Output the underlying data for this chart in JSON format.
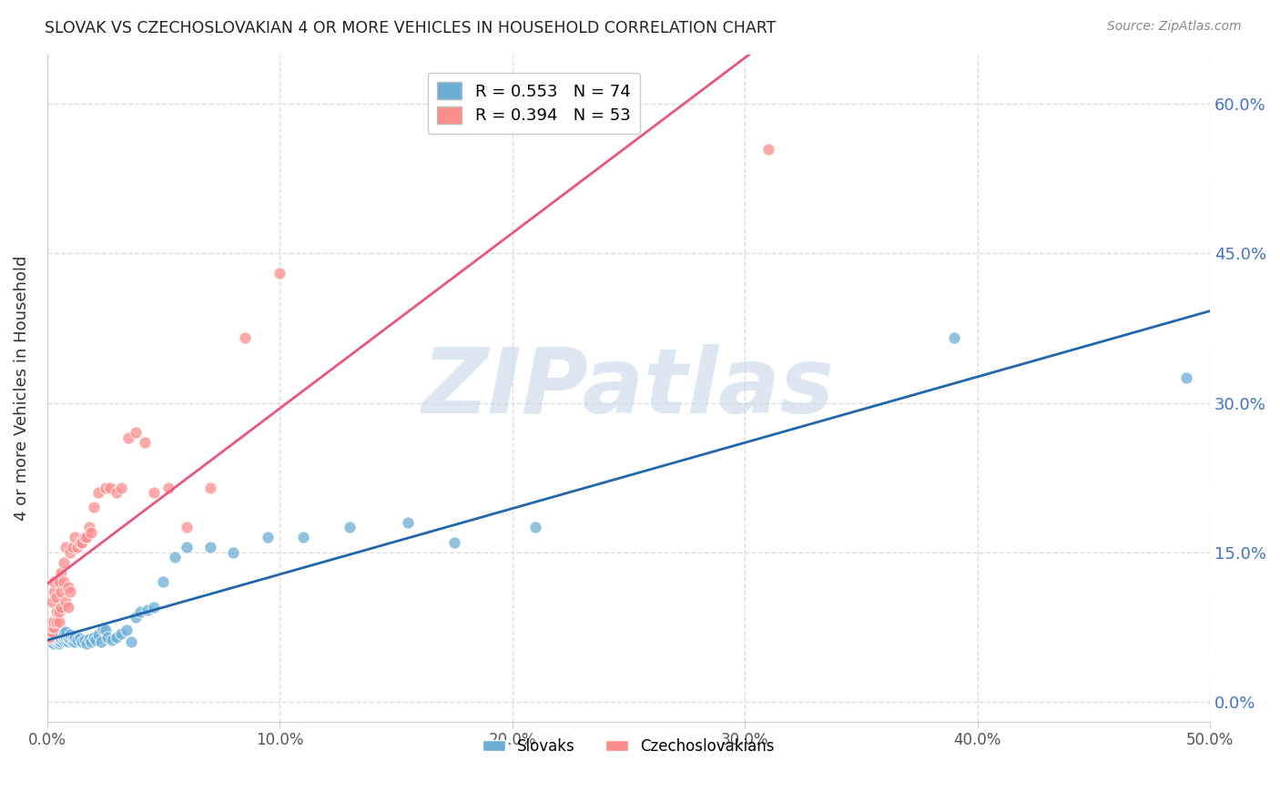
{
  "title": "SLOVAK VS CZECHOSLOVAKIAN 4 OR MORE VEHICLES IN HOUSEHOLD CORRELATION CHART",
  "source": "Source: ZipAtlas.com",
  "ylabel": "4 or more Vehicles in Household",
  "xlabel_ticks": [
    "0.0%",
    "10.0%",
    "20.0%",
    "30.0%",
    "40.0%",
    "50.0%"
  ],
  "xlabel_vals": [
    0.0,
    0.1,
    0.2,
    0.3,
    0.4,
    0.5
  ],
  "ylabel_ticks": [
    "0.0%",
    "15.0%",
    "30.0%",
    "45.0%",
    "60.0%"
  ],
  "ylabel_vals": [
    0.0,
    0.15,
    0.3,
    0.45,
    0.6
  ],
  "xlim": [
    0.0,
    0.5
  ],
  "ylim": [
    -0.02,
    0.65
  ],
  "legend1_R": "0.553",
  "legend1_N": "74",
  "legend2_R": "0.394",
  "legend2_N": "53",
  "blue_color": "#6baed6",
  "pink_color": "#fc8d8d",
  "blue_line_color": "#2166ac",
  "pink_line_color": "#e8567a",
  "dash_line_color": "#aaaaaa",
  "watermark": "ZIPatlas",
  "watermark_color": "#c8d8e8",
  "background_color": "#ffffff",
  "grid_color": "#dddddd",
  "slovaks_x": [
    0.001,
    0.001,
    0.002,
    0.002,
    0.002,
    0.002,
    0.003,
    0.003,
    0.003,
    0.003,
    0.003,
    0.004,
    0.004,
    0.004,
    0.004,
    0.004,
    0.005,
    0.005,
    0.005,
    0.005,
    0.005,
    0.006,
    0.006,
    0.006,
    0.007,
    0.007,
    0.007,
    0.008,
    0.008,
    0.008,
    0.009,
    0.009,
    0.01,
    0.01,
    0.011,
    0.011,
    0.012,
    0.012,
    0.013,
    0.014,
    0.015,
    0.016,
    0.017,
    0.018,
    0.019,
    0.02,
    0.021,
    0.022,
    0.023,
    0.024,
    0.025,
    0.026,
    0.028,
    0.03,
    0.032,
    0.034,
    0.036,
    0.038,
    0.04,
    0.043,
    0.046,
    0.05,
    0.055,
    0.06,
    0.07,
    0.08,
    0.095,
    0.11,
    0.13,
    0.155,
    0.175,
    0.21,
    0.39,
    0.49
  ],
  "slovaks_y": [
    0.06,
    0.065,
    0.06,
    0.065,
    0.068,
    0.072,
    0.058,
    0.062,
    0.065,
    0.07,
    0.072,
    0.06,
    0.063,
    0.066,
    0.069,
    0.072,
    0.058,
    0.061,
    0.064,
    0.067,
    0.07,
    0.06,
    0.064,
    0.068,
    0.061,
    0.065,
    0.069,
    0.062,
    0.066,
    0.07,
    0.06,
    0.064,
    0.063,
    0.067,
    0.06,
    0.065,
    0.06,
    0.065,
    0.062,
    0.064,
    0.06,
    0.062,
    0.058,
    0.063,
    0.06,
    0.065,
    0.062,
    0.067,
    0.06,
    0.073,
    0.072,
    0.065,
    0.062,
    0.065,
    0.068,
    0.072,
    0.06,
    0.085,
    0.09,
    0.092,
    0.095,
    0.12,
    0.145,
    0.155,
    0.155,
    0.15,
    0.165,
    0.165,
    0.175,
    0.18,
    0.16,
    0.175,
    0.365,
    0.325
  ],
  "czechoslovakians_x": [
    0.001,
    0.001,
    0.001,
    0.002,
    0.002,
    0.002,
    0.002,
    0.003,
    0.003,
    0.003,
    0.003,
    0.004,
    0.004,
    0.004,
    0.005,
    0.005,
    0.005,
    0.006,
    0.006,
    0.006,
    0.007,
    0.007,
    0.008,
    0.008,
    0.009,
    0.009,
    0.01,
    0.01,
    0.011,
    0.012,
    0.013,
    0.014,
    0.015,
    0.016,
    0.017,
    0.018,
    0.019,
    0.02,
    0.022,
    0.025,
    0.027,
    0.03,
    0.032,
    0.035,
    0.038,
    0.042,
    0.046,
    0.052,
    0.06,
    0.07,
    0.085,
    0.1,
    0.31
  ],
  "czechoslovakians_y": [
    0.065,
    0.07,
    0.075,
    0.07,
    0.075,
    0.08,
    0.1,
    0.075,
    0.08,
    0.11,
    0.12,
    0.08,
    0.09,
    0.105,
    0.08,
    0.09,
    0.12,
    0.095,
    0.11,
    0.13,
    0.12,
    0.14,
    0.1,
    0.155,
    0.095,
    0.115,
    0.11,
    0.15,
    0.155,
    0.165,
    0.155,
    0.16,
    0.16,
    0.165,
    0.165,
    0.175,
    0.17,
    0.195,
    0.21,
    0.215,
    0.215,
    0.21,
    0.215,
    0.265,
    0.27,
    0.26,
    0.21,
    0.215,
    0.175,
    0.215,
    0.365,
    0.43,
    0.555
  ]
}
